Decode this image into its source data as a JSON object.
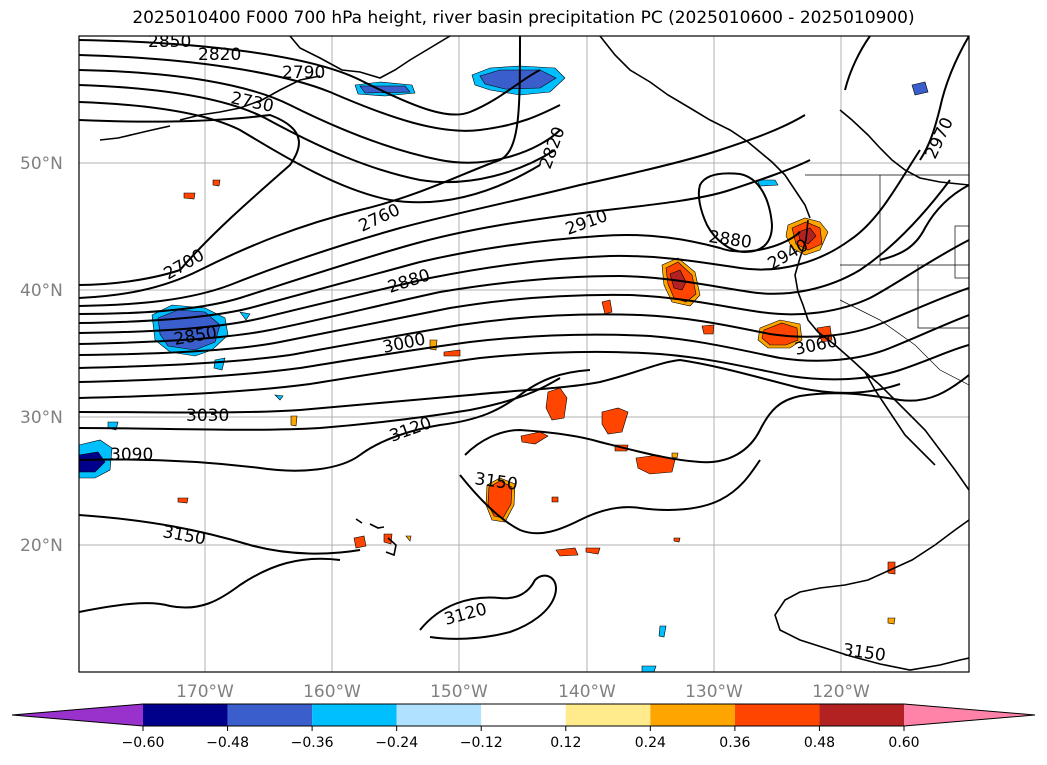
{
  "title": "2025010400 F000 700 hPa height, river basin precipitation PC (2025010600 - 2025010900)",
  "map": {
    "lat_labels": [
      "50°N",
      "40°N",
      "30°N",
      "20°N"
    ],
    "lon_labels": [
      "170°W",
      "160°W",
      "150°W",
      "140°W",
      "130°W",
      "120°W"
    ],
    "grid": true,
    "field": "700 hPa geopotential height (contours)",
    "shading": "river basin precipitation PC"
  },
  "contour_labels": [
    {
      "text": "2850"
    },
    {
      "text": "2820"
    },
    {
      "text": "2790"
    },
    {
      "text": "2730"
    },
    {
      "text": "2820"
    },
    {
      "text": "2970"
    },
    {
      "text": "2760"
    },
    {
      "text": "2910"
    },
    {
      "text": "2880"
    },
    {
      "text": "2700"
    },
    {
      "text": "2940"
    },
    {
      "text": "2880"
    },
    {
      "text": "2850"
    },
    {
      "text": "3000"
    },
    {
      "text": "3060"
    },
    {
      "text": "3030"
    },
    {
      "text": "3120"
    },
    {
      "text": "3090"
    },
    {
      "text": "3150"
    },
    {
      "text": "3150"
    },
    {
      "text": "3120"
    },
    {
      "text": "3150"
    }
  ],
  "colorbar": {
    "ticks": [
      "−0.60",
      "−0.48",
      "−0.36",
      "−0.24",
      "−0.12",
      "0.12",
      "0.24",
      "0.36",
      "0.48",
      "0.60"
    ],
    "colors": [
      "#9932cc",
      "#00008b",
      "#3a5fcd",
      "#00bfff",
      "#b0e2ff",
      "#ffffff",
      "#ffeb8b",
      "#ffa500",
      "#ff4500",
      "#b22222",
      "#ff83a8"
    ]
  }
}
